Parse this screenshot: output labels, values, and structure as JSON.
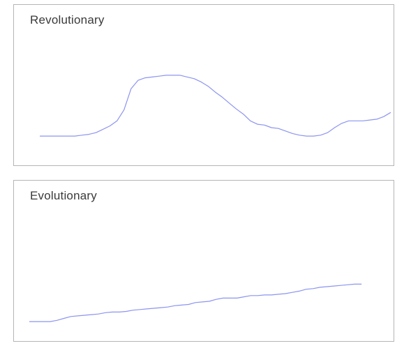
{
  "chart_data": [
    {
      "type": "line",
      "title": "Revolutionary",
      "xlabel": "",
      "ylabel": "",
      "grid": false,
      "legend": "none",
      "color": "#8c94f0",
      "xlim": [
        0,
        100
      ],
      "ylim": [
        0,
        100
      ],
      "x": [
        0,
        2,
        4,
        6,
        8,
        10,
        12,
        14,
        16,
        18,
        20,
        22,
        24,
        26,
        28,
        30,
        32,
        34,
        36,
        38,
        40,
        42,
        44,
        46,
        48,
        50,
        52,
        54,
        56,
        58,
        60,
        62,
        64,
        66,
        68,
        70,
        72,
        74,
        76,
        78,
        80,
        82,
        84,
        86,
        88,
        90,
        92,
        94,
        96,
        98,
        100
      ],
      "values": [
        14,
        14,
        14,
        14,
        14,
        14,
        15,
        16,
        18,
        22,
        26,
        32,
        45,
        70,
        80,
        83,
        84,
        85,
        86,
        86,
        86,
        84,
        82,
        78,
        73,
        66,
        60,
        53,
        46,
        40,
        32,
        28,
        27,
        24,
        23,
        20,
        17,
        15,
        14,
        14,
        15,
        18,
        24,
        29,
        32,
        32,
        32,
        33,
        34,
        37,
        42
      ]
    },
    {
      "type": "line",
      "title": "Evolutionary",
      "xlabel": "",
      "ylabel": "",
      "grid": false,
      "legend": "none",
      "color": "#8c94f0",
      "xlim": [
        0,
        100
      ],
      "ylim": [
        0,
        100
      ],
      "x": [
        0,
        2,
        4,
        6,
        8,
        10,
        12,
        14,
        16,
        18,
        20,
        22,
        24,
        26,
        28,
        30,
        32,
        34,
        36,
        38,
        40,
        42,
        44,
        46,
        48,
        50,
        52,
        54,
        56,
        58,
        60,
        62,
        64,
        66,
        68,
        70,
        72,
        74,
        76,
        78,
        80,
        82,
        84,
        86,
        88,
        90,
        92,
        94,
        96
      ],
      "values": [
        12,
        12,
        12,
        12,
        14,
        17,
        20,
        21,
        22,
        23,
        24,
        26,
        27,
        27,
        28,
        30,
        31,
        32,
        33,
        34,
        35,
        37,
        38,
        39,
        42,
        43,
        44,
        47,
        49,
        49,
        49,
        51,
        53,
        53,
        54,
        54,
        55,
        56,
        58,
        60,
        63,
        64,
        66,
        67,
        68,
        69,
        70,
        71,
        71
      ]
    }
  ]
}
